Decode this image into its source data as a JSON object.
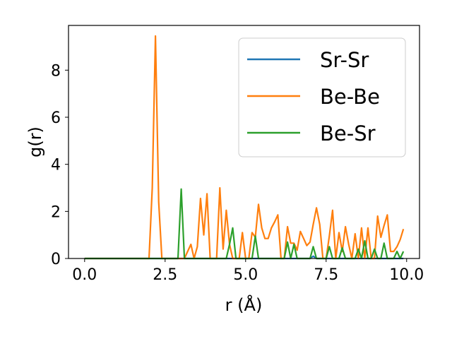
{
  "chart_data": {
    "type": "line",
    "title": "",
    "xlabel": "r (Å)",
    "ylabel": "g(r)",
    "xlim": [
      -0.5,
      10.4
    ],
    "ylim": [
      0,
      9.9
    ],
    "xticks": [
      0.0,
      2.5,
      5.0,
      7.5,
      10.0
    ],
    "xtick_labels": [
      "0.0",
      "2.5",
      "5.0",
      "7.5",
      "10.0"
    ],
    "yticks": [
      0,
      2,
      4,
      6,
      8
    ],
    "ytick_labels": [
      "0",
      "2",
      "4",
      "6",
      "8"
    ],
    "grid": false,
    "legend_position": "top-right",
    "series": [
      {
        "name": "Sr-Sr",
        "color": "#1f77b4",
        "x": [
          0.0,
          7.0,
          7.1,
          7.2,
          7.3,
          9.9
        ],
        "y": [
          0.0,
          0.0,
          0.1,
          0.0,
          0.0,
          0.0
        ]
      },
      {
        "name": "Be-Be",
        "color": "#ff7f0e",
        "x": [
          0.0,
          2.0,
          2.1,
          2.2,
          2.3,
          2.4,
          2.5,
          3.1,
          3.3,
          3.4,
          3.5,
          3.6,
          3.7,
          3.8,
          3.9,
          4.0,
          4.1,
          4.2,
          4.3,
          4.4,
          4.5,
          4.6,
          4.7,
          4.8,
          4.9,
          5.0,
          5.1,
          5.2,
          5.3,
          5.4,
          5.5,
          5.6,
          5.7,
          5.8,
          5.9,
          6.0,
          6.1,
          6.2,
          6.3,
          6.4,
          6.5,
          6.6,
          6.7,
          6.8,
          6.9,
          7.0,
          7.1,
          7.2,
          7.3,
          7.4,
          7.5,
          7.6,
          7.7,
          7.8,
          7.9,
          8.0,
          8.1,
          8.2,
          8.3,
          8.4,
          8.5,
          8.6,
          8.7,
          8.8,
          8.9,
          9.0,
          9.1,
          9.2,
          9.3,
          9.4,
          9.5,
          9.6,
          9.7,
          9.8,
          9.9
        ],
        "y": [
          0.0,
          0.0,
          3.0,
          9.45,
          2.4,
          0.0,
          0.0,
          0.0,
          0.6,
          0.0,
          0.5,
          2.55,
          1.0,
          2.75,
          0.0,
          0.0,
          0.0,
          3.0,
          0.4,
          2.05,
          0.6,
          0.0,
          0.0,
          0.0,
          1.1,
          0.0,
          0.0,
          1.1,
          0.9,
          2.3,
          1.3,
          0.85,
          0.85,
          1.3,
          1.55,
          1.85,
          0.0,
          0.0,
          1.35,
          0.65,
          0.65,
          0.35,
          1.15,
          0.85,
          0.55,
          0.7,
          1.45,
          2.15,
          1.45,
          0.0,
          0.0,
          0.95,
          2.05,
          0.0,
          1.1,
          0.3,
          1.35,
          0.6,
          0.0,
          1.05,
          0.0,
          1.3,
          0.0,
          1.3,
          0.0,
          0.0,
          1.8,
          0.9,
          1.4,
          1.85,
          0.3,
          0.3,
          0.5,
          0.8,
          1.25
        ]
      },
      {
        "name": "Be-Sr",
        "color": "#2ca02c",
        "x": [
          0.0,
          2.9,
          3.0,
          3.1,
          4.4,
          4.5,
          4.6,
          4.7,
          5.2,
          5.3,
          5.4,
          6.2,
          6.3,
          6.4,
          6.5,
          6.6,
          6.7,
          7.0,
          7.1,
          7.2,
          7.5,
          7.6,
          7.7,
          7.9,
          8.0,
          8.1,
          8.4,
          8.5,
          8.6,
          8.7,
          8.8,
          8.9,
          9.0,
          9.1,
          9.2,
          9.3,
          9.4,
          9.5,
          9.6,
          9.7,
          9.8,
          9.9
        ],
        "y": [
          0.0,
          0.0,
          2.95,
          0.0,
          0.0,
          0.6,
          1.3,
          0.0,
          0.0,
          0.95,
          0.0,
          0.0,
          0.7,
          0.0,
          0.6,
          0.0,
          0.0,
          0.0,
          0.5,
          0.0,
          0.0,
          0.5,
          0.0,
          0.0,
          0.45,
          0.0,
          0.0,
          0.4,
          0.0,
          0.75,
          0.0,
          0.0,
          0.4,
          0.0,
          0.0,
          0.65,
          0.0,
          0.0,
          0.0,
          0.3,
          0.0,
          0.3
        ]
      }
    ]
  }
}
